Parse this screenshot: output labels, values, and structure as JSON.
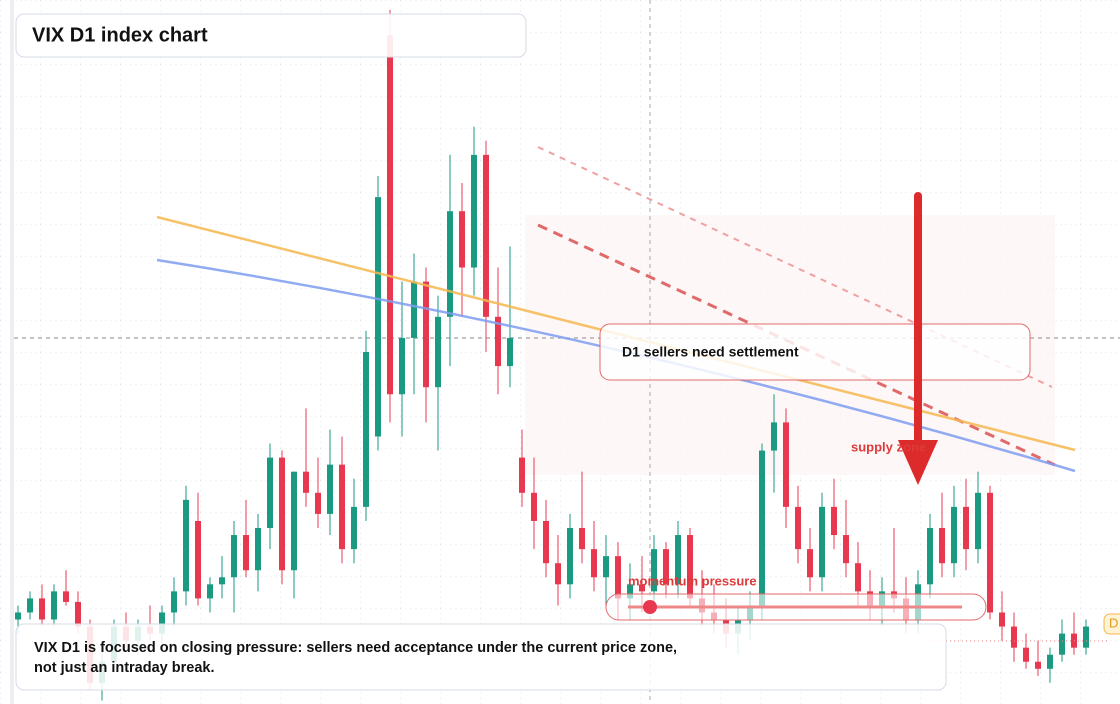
{
  "chart_data": {
    "type": "candlestick",
    "title": "VIX D1 index chart",
    "ylim": [
      0,
      100
    ],
    "up_color": "#1a9a80",
    "down_color": "#e8384f",
    "ohlc": [
      [
        12,
        14,
        10,
        13
      ],
      [
        13,
        16,
        12,
        15
      ],
      [
        15,
        17,
        11,
        12
      ],
      [
        12,
        17,
        11,
        16
      ],
      [
        16,
        19,
        14,
        14.5
      ],
      [
        14.5,
        16,
        10,
        11
      ],
      [
        11,
        12,
        2,
        3
      ],
      [
        3,
        8,
        0.5,
        6
      ],
      [
        6,
        12,
        5,
        11
      ],
      [
        11,
        13,
        8,
        9
      ],
      [
        9,
        12,
        7,
        11
      ],
      [
        11,
        14,
        9,
        10
      ],
      [
        10,
        14,
        8,
        13
      ],
      [
        13,
        18,
        11,
        16
      ],
      [
        16,
        31,
        14,
        29
      ],
      [
        26,
        30,
        14,
        15
      ],
      [
        15,
        18,
        13,
        17
      ],
      [
        17,
        21,
        15,
        18
      ],
      [
        18,
        26,
        13,
        24
      ],
      [
        24,
        29,
        18,
        19
      ],
      [
        19,
        27,
        16,
        25
      ],
      [
        25,
        37,
        22,
        35
      ],
      [
        35,
        36,
        17,
        19
      ],
      [
        19,
        33,
        15,
        33
      ],
      [
        33,
        42,
        28,
        30
      ],
      [
        30,
        35,
        25,
        27
      ],
      [
        27,
        39,
        24,
        34
      ],
      [
        34,
        38,
        20,
        22
      ],
      [
        22,
        32,
        20,
        28
      ],
      [
        28,
        53,
        26,
        50
      ],
      [
        38,
        75,
        36,
        72
      ],
      [
        95,
        98.6,
        40,
        44
      ],
      [
        44,
        60,
        38,
        52
      ],
      [
        52,
        64,
        44,
        60
      ],
      [
        60,
        62,
        40,
        45
      ],
      [
        45,
        58,
        36,
        55
      ],
      [
        55,
        78,
        48,
        70
      ],
      [
        70,
        74,
        55,
        62
      ],
      [
        62,
        82,
        58,
        78
      ],
      [
        78,
        80,
        50,
        55
      ],
      [
        55,
        62,
        44,
        48
      ],
      [
        48,
        65,
        45,
        52
      ],
      [
        35,
        39,
        28,
        30
      ],
      [
        30,
        35,
        22,
        26
      ],
      [
        26,
        29,
        18,
        20
      ],
      [
        20,
        24,
        14,
        17
      ],
      [
        17,
        27,
        15,
        25
      ],
      [
        25,
        33,
        20,
        22
      ],
      [
        22,
        26,
        16,
        18
      ],
      [
        18,
        24,
        14,
        21
      ],
      [
        21,
        23,
        12,
        15
      ],
      [
        15,
        20,
        12,
        17
      ],
      [
        17,
        21,
        13,
        16
      ],
      [
        16,
        24,
        14,
        22
      ],
      [
        22,
        23,
        15,
        17
      ],
      [
        17,
        26,
        15,
        24
      ],
      [
        24,
        25,
        14,
        15
      ],
      [
        15,
        19,
        11,
        13
      ],
      [
        13,
        17,
        10,
        12
      ],
      [
        12,
        15,
        8,
        10
      ],
      [
        10,
        14,
        7,
        12
      ],
      [
        12,
        16,
        9,
        14
      ],
      [
        14,
        37,
        12,
        36
      ],
      [
        36,
        44,
        30,
        40
      ],
      [
        40,
        42,
        25,
        28
      ],
      [
        28,
        31,
        20,
        22
      ],
      [
        22,
        25,
        16,
        18
      ],
      [
        18,
        30,
        16,
        28
      ],
      [
        28,
        32,
        22,
        24
      ],
      [
        24,
        29,
        18,
        20
      ],
      [
        20,
        23,
        14,
        16
      ],
      [
        16,
        19,
        12,
        14
      ],
      [
        14,
        18,
        11,
        16
      ],
      [
        16,
        25,
        13,
        15
      ],
      [
        15,
        18,
        10,
        12
      ],
      [
        12,
        19,
        10,
        17
      ],
      [
        17,
        27,
        15,
        25
      ],
      [
        25,
        30,
        18,
        20
      ],
      [
        20,
        31,
        18,
        28
      ],
      [
        28,
        32,
        19,
        22
      ],
      [
        22,
        33,
        20,
        30
      ],
      [
        30,
        31,
        12,
        13
      ],
      [
        13,
        16,
        9,
        11
      ],
      [
        11,
        13,
        6,
        8
      ],
      [
        8,
        10,
        5,
        6
      ],
      [
        6,
        9,
        4,
        5
      ],
      [
        5,
        8,
        3,
        7
      ],
      [
        7,
        12,
        6,
        10
      ],
      [
        10,
        13,
        7,
        8
      ],
      [
        8,
        12,
        7,
        11
      ]
    ],
    "annotations": {
      "settlement": "D1 sellers need settlement",
      "supply": "supply zone",
      "momentum": "momentum pressure",
      "note_line1": "VIX D1 is focused on closing pressure: sellers need acceptance under the current price zone,",
      "note_line2": "not just an intraday break.",
      "badge": "D"
    }
  }
}
